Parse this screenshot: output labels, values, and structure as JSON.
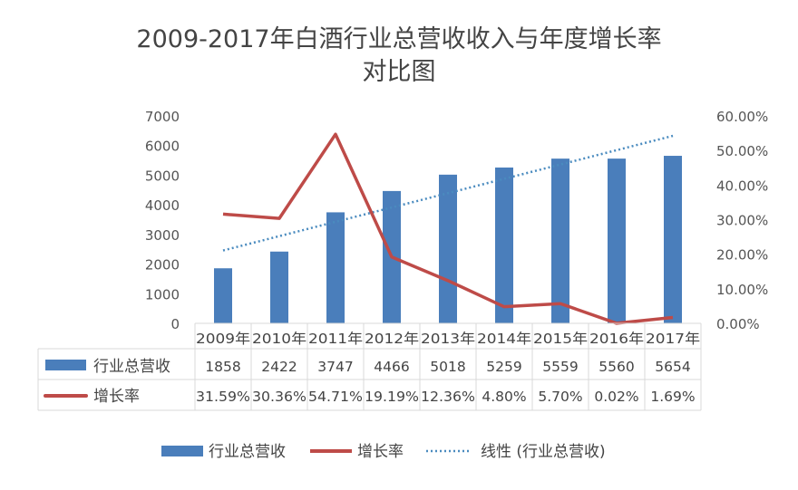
{
  "chart_data": {
    "type": "bar",
    "title_line1": "2009-2017年白酒行业总营收收入与年度增长率",
    "title_line2": "对比图",
    "categories": [
      "2009年",
      "2010年",
      "2011年",
      "2012年",
      "2013年",
      "2014年",
      "2015年",
      "2016年",
      "2017年"
    ],
    "series": [
      {
        "name": "行业总营收",
        "type": "bar",
        "axis": "left",
        "color": "#4a7ebb",
        "values": [
          1858,
          2422,
          3747,
          4466,
          5018,
          5259,
          5559,
          5560,
          5654
        ],
        "labels": [
          "1858",
          "2422",
          "3747",
          "4466",
          "5018",
          "5259",
          "5559",
          "5560",
          "5654"
        ]
      },
      {
        "name": "增长率",
        "type": "line",
        "axis": "right",
        "color": "#be4b48",
        "values": [
          31.59,
          30.36,
          54.71,
          19.19,
          12.36,
          4.8,
          5.7,
          0.02,
          1.69
        ],
        "labels": [
          "31.59%",
          "30.36%",
          "54.71%",
          "19.19%",
          "12.36%",
          "4.80%",
          "5.70%",
          "0.02%",
          "1.69%"
        ]
      },
      {
        "name": "线性 (行业总营收)",
        "type": "trendline",
        "color": "#4a8bbf"
      }
    ],
    "ylim": [
      0,
      7000
    ],
    "yticks": [
      "0",
      "1000",
      "2000",
      "3000",
      "4000",
      "5000",
      "6000",
      "7000"
    ],
    "y2lim": [
      0,
      60
    ],
    "y2ticks": [
      "0.00%",
      "10.00%",
      "20.00%",
      "30.00%",
      "40.00%",
      "50.00%",
      "60.00%"
    ],
    "legend_position": "bottom",
    "data_table": true
  }
}
